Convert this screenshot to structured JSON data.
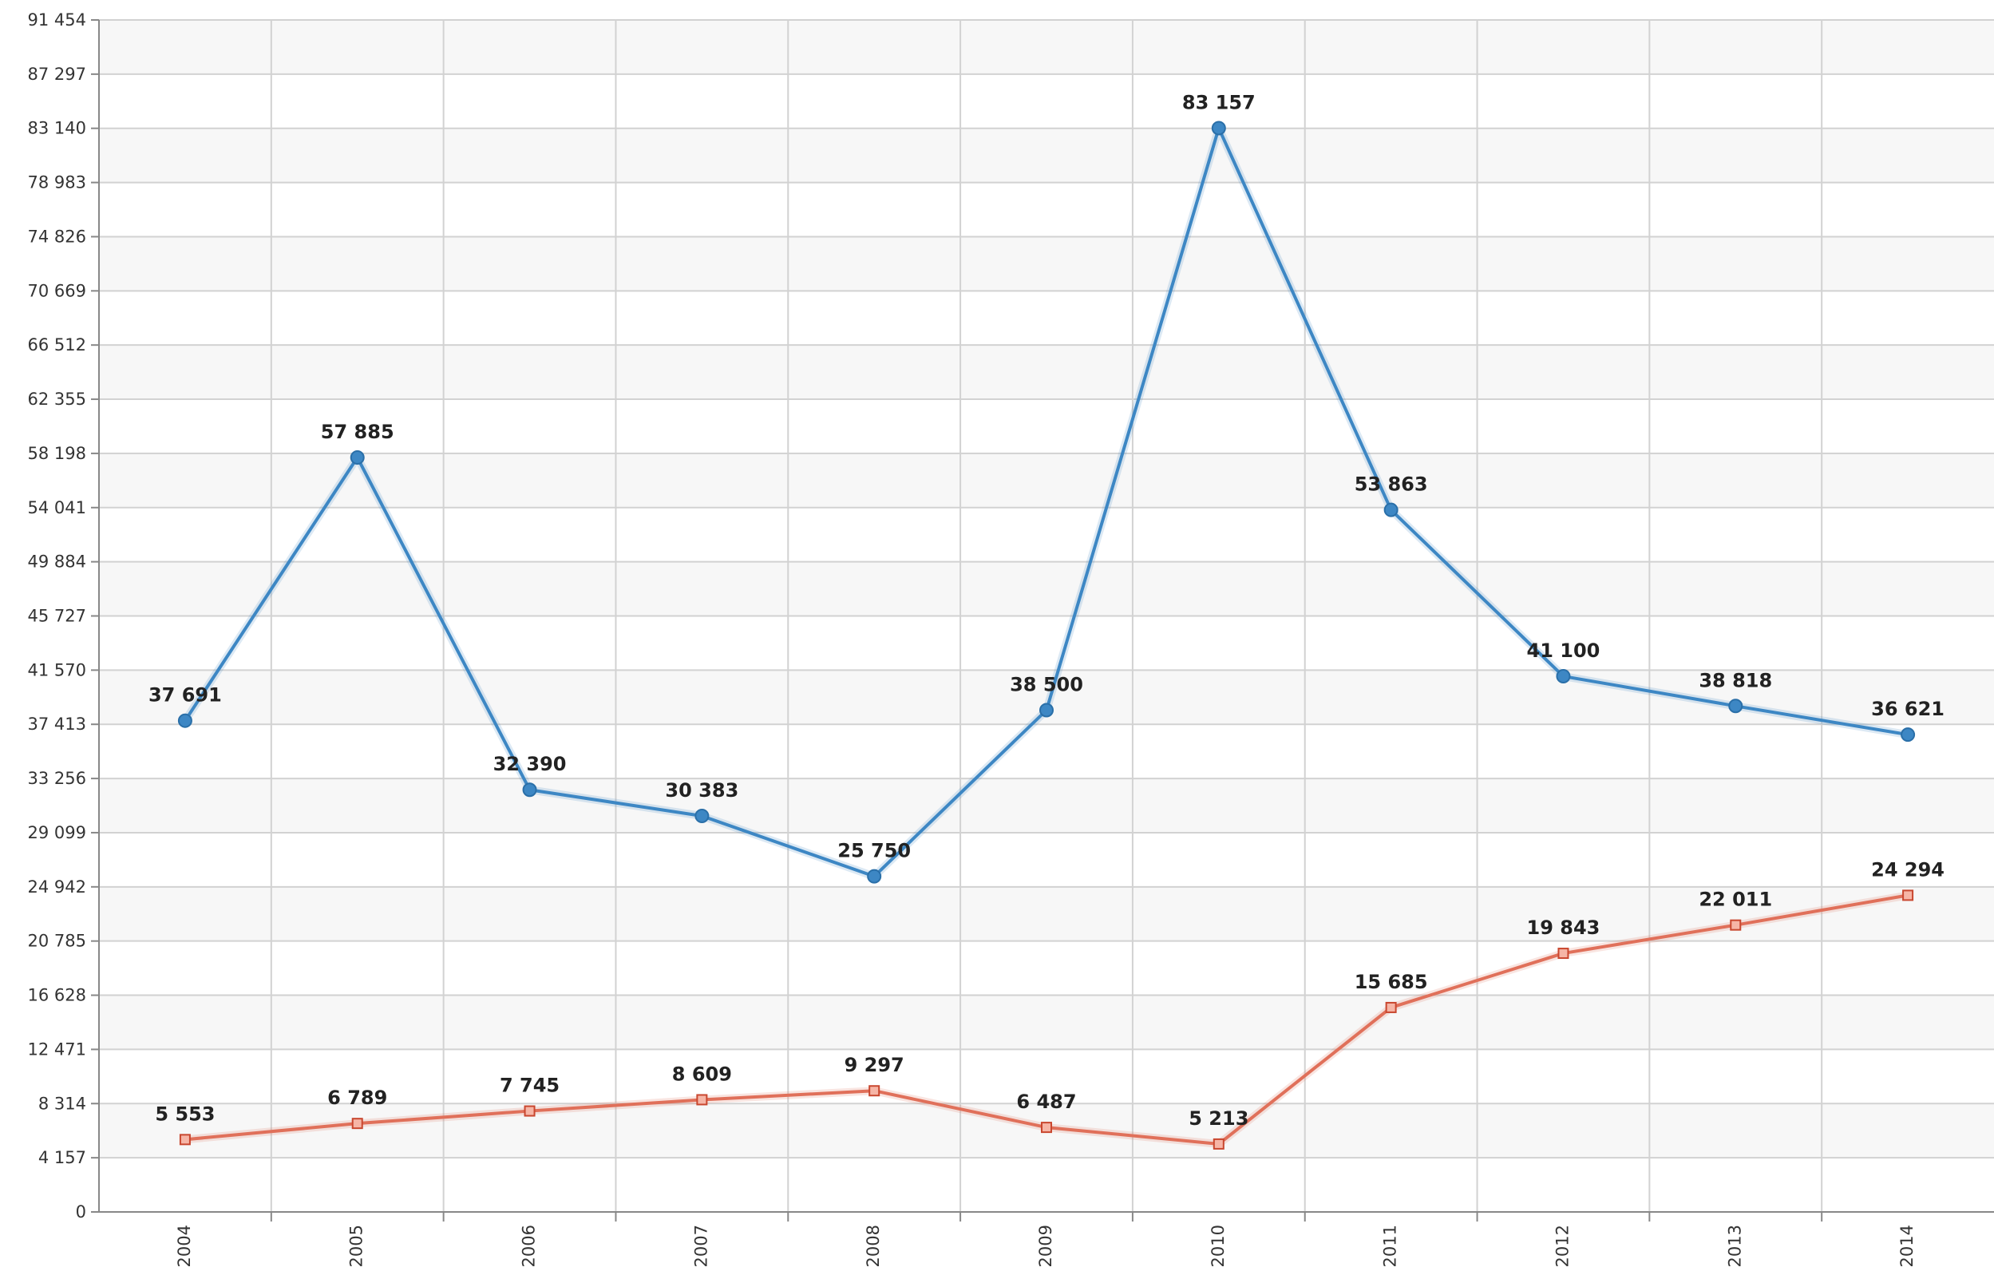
{
  "chart_data": {
    "type": "line",
    "title": "",
    "xlabel": "",
    "ylabel": "",
    "categories": [
      "2004",
      "2005",
      "2006",
      "2007",
      "2008",
      "2009",
      "2010",
      "2011",
      "2012",
      "2013",
      "2014"
    ],
    "y_ticks": [
      0,
      4157,
      8314,
      12471,
      16628,
      20785,
      24942,
      29099,
      33256,
      37413,
      41570,
      45727,
      49884,
      54041,
      58198,
      62355,
      66512,
      70669,
      74826,
      78983,
      83140,
      87297,
      91454
    ],
    "y_tick_labels": [
      "0",
      "4 157",
      "8 314",
      "12 471",
      "16 628",
      "20 785",
      "24 942",
      "29 099",
      "33 256",
      "37 413",
      "41 570",
      "45 727",
      "49 884",
      "54 041",
      "58 198",
      "62 355",
      "66 512",
      "70 669",
      "74 826",
      "78 983",
      "83 140",
      "87 297",
      "91 454"
    ],
    "ylim": [
      0,
      91454
    ],
    "grid": true,
    "legend": "none",
    "series": [
      {
        "color": "#3d87c4",
        "marker": "circle",
        "values": [
          37691,
          57885,
          32390,
          30383,
          25750,
          38500,
          83157,
          53863,
          41100,
          38818,
          36621
        ],
        "labels": [
          "37 691",
          "57 885",
          "32 390",
          "30 383",
          "25 750",
          "38 500",
          "83 157",
          "53 863",
          "41 100",
          "38 818",
          "36 621"
        ]
      },
      {
        "color": "#e0705a",
        "marker": "square",
        "values": [
          5553,
          6789,
          7745,
          8609,
          9297,
          6487,
          5213,
          15685,
          19843,
          22011,
          24294
        ],
        "labels": [
          "5 553",
          "6 789",
          "7 745",
          "8 609",
          "9 297",
          "6 487",
          "5 213",
          "15 685",
          "19 843",
          "22 011",
          "24 294"
        ]
      }
    ]
  }
}
